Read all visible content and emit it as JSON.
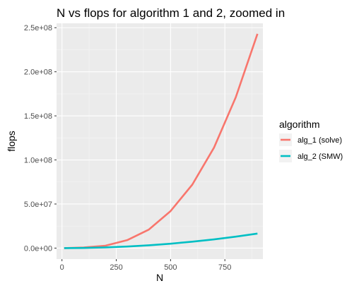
{
  "chart_data": {
    "type": "line",
    "title": "N vs flops for algorithm 1 and 2, zoomed in",
    "xlabel": "N",
    "ylabel": "flops",
    "xlim": [
      -25,
      925
    ],
    "ylim": [
      -12500000,
      255000000
    ],
    "xticks": [
      0,
      250,
      500,
      750
    ],
    "xtick_labels": [
      "0",
      "250",
      "500",
      "750"
    ],
    "yticks": [
      0,
      50000000,
      100000000,
      150000000,
      200000000,
      250000000
    ],
    "ytick_labels": [
      "0.0e+00",
      "5.0e+07",
      "1.0e+08",
      "1.5e+08",
      "2.0e+08",
      "2.5e+08"
    ],
    "grid": true,
    "legend": {
      "title": "algorithm",
      "position": "right"
    },
    "series": [
      {
        "name": "alg_1 (solve)",
        "color": "#F8766D",
        "x": [
          10,
          100,
          200,
          300,
          400,
          500,
          600,
          700,
          800,
          900
        ],
        "y": [
          700,
          700000,
          2700000,
          9000000,
          21000000,
          42000000,
          72000000,
          114000000,
          171000000,
          243000000
        ]
      },
      {
        "name": "alg_2 (SMW)",
        "color": "#00BFC4",
        "x": [
          10,
          100,
          200,
          300,
          400,
          500,
          600,
          700,
          800,
          900
        ],
        "y": [
          1000,
          200000,
          800000,
          1800000,
          3200000,
          5000000,
          7300000,
          9900000,
          13000000,
          16500000
        ]
      }
    ]
  }
}
